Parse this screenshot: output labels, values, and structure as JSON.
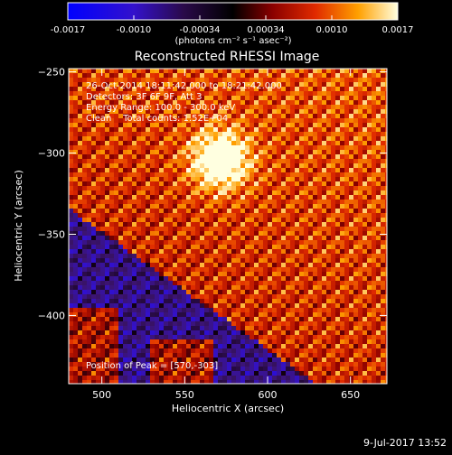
{
  "chart_data": {
    "type": "heatmap",
    "title": "Reconstructed RHESSI Image",
    "xlabel": "Heliocentric X (arcsec)",
    "ylabel": "Heliocentric Y (arcsec)",
    "xlim": [
      480,
      672
    ],
    "ylim": [
      -442,
      -248
    ],
    "x_ticks": [
      500,
      550,
      600,
      650
    ],
    "y_ticks": [
      -250,
      -300,
      -350,
      -400
    ],
    "colorbar": {
      "min": -0.0017,
      "max": 0.0017,
      "ticks": [
        "-0.0017",
        "-0.0010",
        "-0.00034",
        "0.00034",
        "0.0010",
        "0.0017"
      ],
      "label": "(photons cm⁻² s⁻¹ asec⁻²)"
    },
    "peak": {
      "x": 570,
      "y": -303
    },
    "annotations": [
      "26-Oct-2014 18:11:42.000 to 18:21:42.000",
      "Detectors: 3F 6F 9F, Att 3",
      "Energy Range: 100.0 - 300.0 keV",
      "Clean    Total counts: 1.52E+04"
    ],
    "peak_label": "Position of Peak = [570,-303]",
    "footer_date": "9-Jul-2017 13:52"
  }
}
